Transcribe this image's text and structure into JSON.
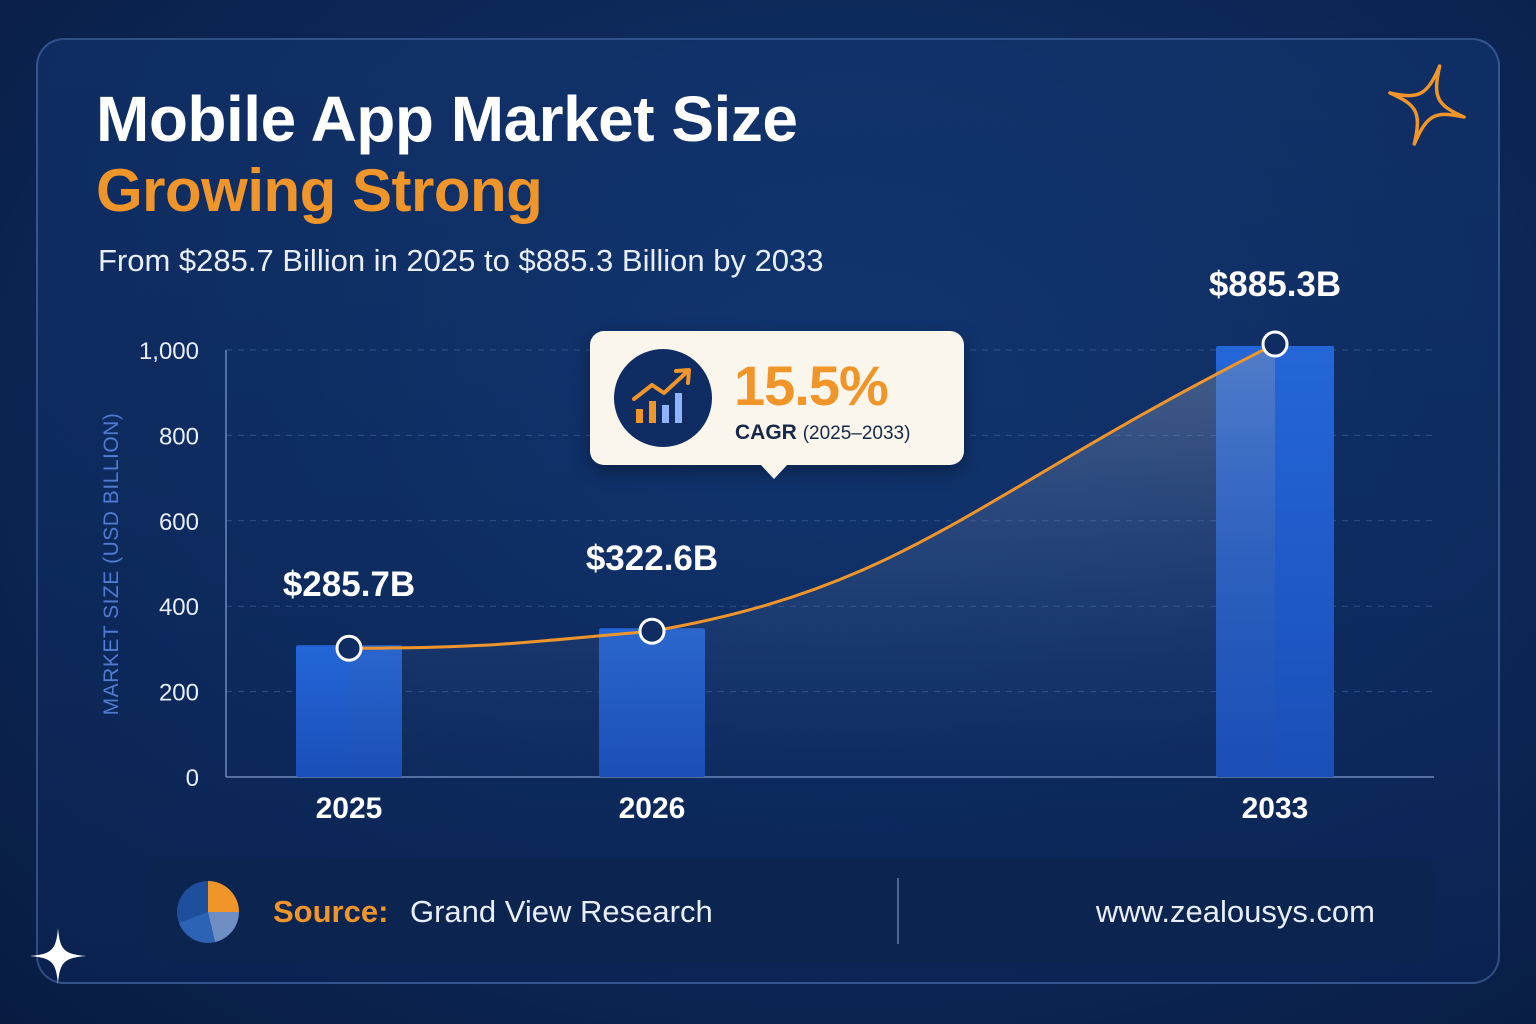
{
  "header": {
    "title_line1": "Mobile App Market Size",
    "title_line2": "Growing Strong",
    "subtitle": "From $285.7 Billion in 2025 to $885.3 Billion by 2033"
  },
  "callout": {
    "value": "15.5%",
    "label": "CAGR",
    "range": "(2025–2033)",
    "icon": "growth-chart-icon"
  },
  "footer": {
    "source_label": "Source:",
    "source_value": "Grand View Research",
    "website": "www.zealousys.com",
    "icon": "pie-chart-icon"
  },
  "colors": {
    "accent_orange": "#f0952a",
    "bar_blue": "#1e5fcf",
    "background_navy": "#0d2a5c",
    "text_white": "#ffffff"
  },
  "chart_data": {
    "type": "bar",
    "categories": [
      "2025",
      "2026",
      "2033"
    ],
    "values": [
      285.7,
      322.6,
      885.3
    ],
    "value_labels": [
      "$285.7B",
      "$322.6B",
      "$885.3B"
    ],
    "trend_line": true,
    "ylabel": "MARKET SIZE (USD BILLION)",
    "xlabel": "",
    "ylim": [
      0,
      1000
    ],
    "yticks": [
      0,
      200,
      400,
      600,
      800,
      1000
    ],
    "ytick_labels": [
      "0",
      "200",
      "400",
      "600",
      "800",
      "1,000"
    ],
    "grid": true
  }
}
